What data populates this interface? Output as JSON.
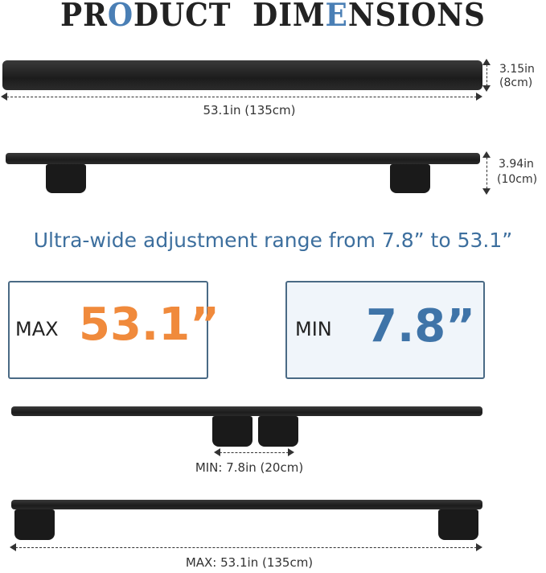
{
  "title": {
    "parts": [
      "PR",
      "O",
      "DUCT  DIM",
      "E",
      "NSIONS"
    ]
  },
  "crossbar_top_view": {
    "length_label": "53.1in (135cm)",
    "height_in": "3.15in",
    "height_cm": "(8cm)"
  },
  "crossbar_side_view": {
    "height_in": "3.94in",
    "height_cm": "(10cm)"
  },
  "headline": "Ultra-wide adjustment range from 7.8” to 53.1”",
  "max_box": {
    "label": "MAX",
    "value": "53.1”",
    "color": "#f08a3c"
  },
  "min_box": {
    "label": "MIN",
    "value": "7.8”",
    "color": "#3f74a8"
  },
  "min_config": {
    "label": "MIN: 7.8in (20cm)"
  },
  "max_config": {
    "label": "MAX: 53.1in (135cm)"
  },
  "colors": {
    "accent_blue": "#3d6f9e",
    "accent_orange": "#f08a3c"
  }
}
